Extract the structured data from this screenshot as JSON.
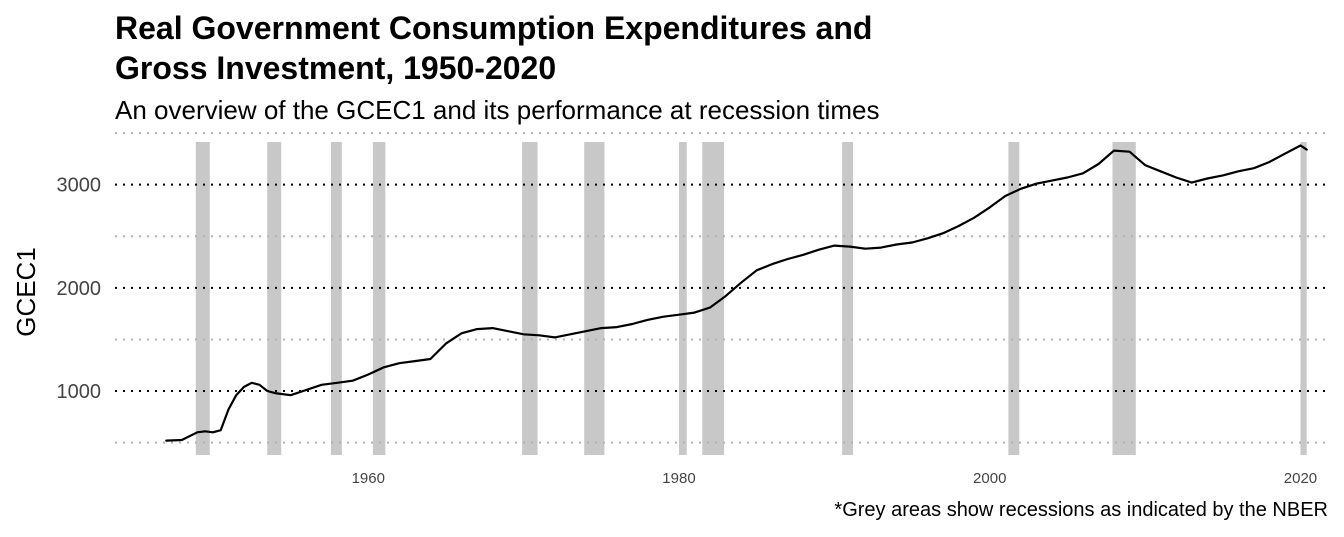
{
  "title_lines": [
    "Real Government Consumption Expenditures and",
    "Gross Investment, 1950-2020"
  ],
  "subtitle": "An overview of the GCEC1 and its performance at recession times",
  "caption": "*Grey areas show recessions as indicated by the NBER",
  "colors": {
    "line": "#000000",
    "recession": "#c8c8c8",
    "major_grid": "#000000",
    "minor_grid": "#b3b3b3"
  },
  "chart_data": {
    "type": "line",
    "title": "Real Government Consumption Expenditures and Gross Investment, 1950-2020",
    "subtitle": "An overview of the GCEC1 and its performance at recession times",
    "xlabel": "",
    "ylabel": "GCEC1",
    "xlim": [
      1943.7,
      2021.9
    ],
    "ylim": [
      380,
      3530
    ],
    "x_ticks": [
      1960,
      1980,
      2000,
      2020
    ],
    "y_ticks": [
      1000,
      2000,
      3000
    ],
    "y_minor_ticks": [
      500,
      1500,
      2500,
      3500
    ],
    "grid": "horizontal dotted",
    "recessions": [
      [
        1948.9,
        1949.8
      ],
      [
        1953.5,
        1954.4
      ],
      [
        1957.6,
        1958.3
      ],
      [
        1960.3,
        1961.1
      ],
      [
        1969.9,
        1970.9
      ],
      [
        1973.9,
        1975.2
      ],
      [
        1980.0,
        1980.5
      ],
      [
        1981.5,
        1982.9
      ],
      [
        1990.5,
        1991.2
      ],
      [
        2001.2,
        2001.9
      ],
      [
        2007.9,
        2009.4
      ],
      [
        2020.0,
        2020.4
      ]
    ],
    "series": [
      {
        "x": [
          1947.0,
          1948.0,
          1949.0,
          1949.5,
          1950.0,
          1950.5,
          1951.0,
          1951.5,
          1952.0,
          1952.5,
          1953.0,
          1953.5,
          1954.0,
          1955.0,
          1956.0,
          1957.0,
          1958.0,
          1959.0,
          1960.0,
          1961.0,
          1962.0,
          1963.0,
          1964.0,
          1965.0,
          1966.0,
          1967.0,
          1968.0,
          1969.0,
          1970.0,
          1971.0,
          1972.0,
          1973.0,
          1974.0,
          1975.0,
          1976.0,
          1977.0,
          1978.0,
          1979.0,
          1980.0,
          1981.0,
          1982.0,
          1983.0,
          1984.0,
          1985.0,
          1986.0,
          1987.0,
          1988.0,
          1989.0,
          1990.0,
          1991.0,
          1992.0,
          1993.0,
          1994.0,
          1995.0,
          1996.0,
          1997.0,
          1998.0,
          1999.0,
          2000.0,
          2001.0,
          2002.0,
          2003.0,
          2004.0,
          2005.0,
          2006.0,
          2007.0,
          2008.0,
          2009.0,
          2010.0,
          2011.0,
          2012.0,
          2013.0,
          2014.0,
          2015.0,
          2016.0,
          2017.0,
          2018.0,
          2019.0,
          2020.0,
          2020.4
        ],
        "y": [
          520,
          525,
          600,
          610,
          600,
          620,
          820,
          960,
          1040,
          1080,
          1060,
          1000,
          980,
          960,
          1010,
          1060,
          1080,
          1100,
          1160,
          1230,
          1270,
          1290,
          1310,
          1460,
          1560,
          1600,
          1610,
          1580,
          1550,
          1540,
          1520,
          1550,
          1580,
          1610,
          1620,
          1650,
          1690,
          1720,
          1740,
          1760,
          1810,
          1920,
          2050,
          2170,
          2230,
          2280,
          2320,
          2370,
          2410,
          2400,
          2380,
          2390,
          2420,
          2440,
          2480,
          2530,
          2600,
          2680,
          2780,
          2890,
          2960,
          3010,
          3040,
          3070,
          3110,
          3200,
          3330,
          3320,
          3190,
          3130,
          3070,
          3020,
          3060,
          3090,
          3130,
          3160,
          3220,
          3300,
          3380,
          3340
        ]
      }
    ]
  }
}
